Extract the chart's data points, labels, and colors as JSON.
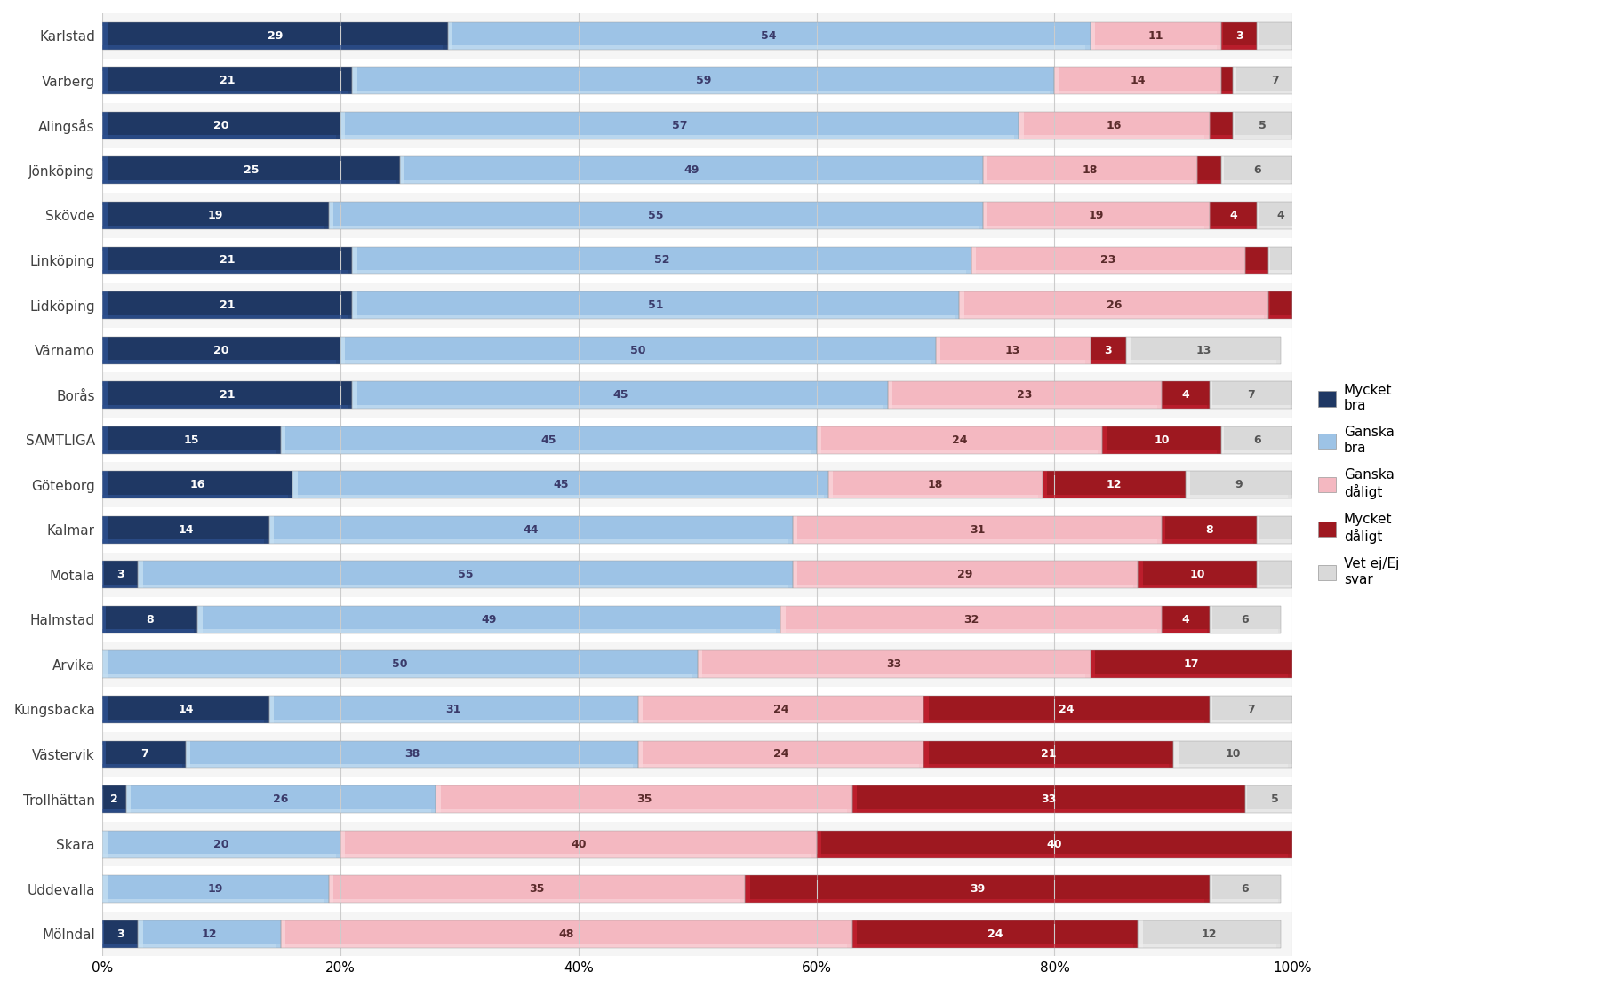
{
  "categories": [
    "Karlstad",
    "Varberg",
    "Alingsås",
    "Jönköping",
    "Skövde",
    "Linköping",
    "Lidköping",
    "Värnamo",
    "Borås",
    "SAMTLIGA",
    "Göteborg",
    "Kalmar",
    "Motala",
    "Halmstad",
    "Arvika",
    "Kungsbacka",
    "Västervik",
    "Trollhättan",
    "Skara",
    "Uddevalla",
    "Mölndal"
  ],
  "mycket_bra": [
    29,
    21,
    20,
    25,
    19,
    21,
    21,
    20,
    21,
    15,
    16,
    14,
    3,
    8,
    0,
    14,
    7,
    2,
    0,
    0,
    3
  ],
  "ganska_bra": [
    54,
    59,
    57,
    49,
    55,
    52,
    51,
    50,
    45,
    45,
    45,
    44,
    55,
    49,
    50,
    31,
    38,
    26,
    20,
    19,
    12
  ],
  "ganska_daligt": [
    11,
    14,
    16,
    18,
    19,
    23,
    26,
    13,
    23,
    24,
    18,
    31,
    29,
    32,
    33,
    24,
    24,
    35,
    40,
    35,
    48
  ],
  "mycket_daligt": [
    3,
    1,
    2,
    2,
    4,
    2,
    2,
    3,
    4,
    10,
    12,
    8,
    10,
    4,
    17,
    24,
    21,
    33,
    40,
    39,
    24
  ],
  "vet_ej": [
    3,
    7,
    5,
    6,
    4,
    2,
    2,
    13,
    7,
    6,
    9,
    3,
    3,
    6,
    0,
    7,
    10,
    5,
    0,
    6,
    12
  ],
  "colors": {
    "mycket_bra": "#1f3864",
    "ganska_bra": "#9dc3e6",
    "ganska_daligt": "#f4b8c1",
    "mycket_daligt": "#9e1820",
    "vet_ej": "#d9d9d9"
  },
  "highlight_colors": {
    "mycket_bra": "#2e5191",
    "ganska_bra": "#c5dff2",
    "ganska_daligt": "#fad4da",
    "mycket_daligt": "#c42030",
    "vet_ej": "#eeeeee"
  },
  "background_color": "#ffffff",
  "grid_color": "#cccccc",
  "text_color_dark": "#404040",
  "label_fontsize": 9,
  "tick_fontsize": 11,
  "bar_height": 0.72
}
